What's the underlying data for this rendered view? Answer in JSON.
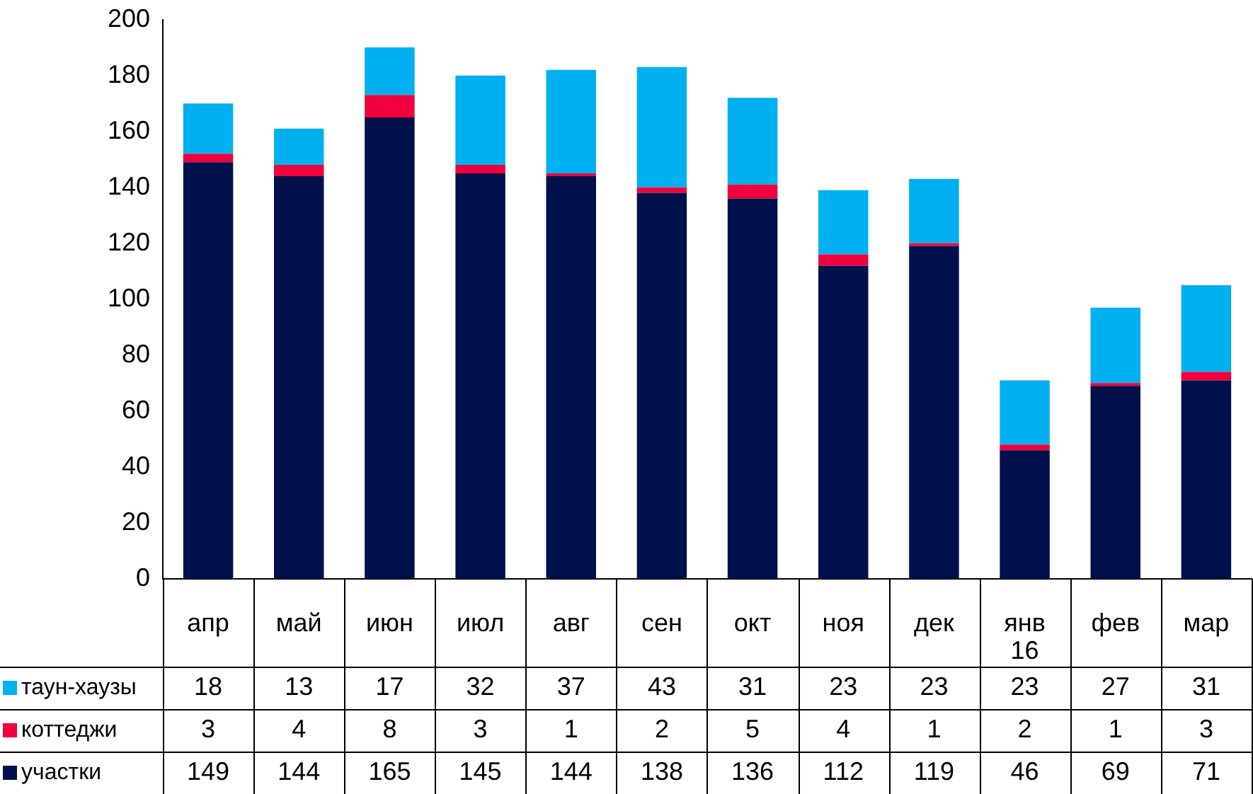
{
  "chart_data": {
    "type": "bar",
    "stacked": true,
    "data_labels": true,
    "legend": "bottom left",
    "grid": false,
    "categories": [
      "апр",
      "май",
      "июн",
      "июл",
      "авг",
      "сен",
      "окт",
      "ноя",
      "дек",
      "янв 16",
      "фев",
      "мар"
    ],
    "series": [
      {
        "name": "участки",
        "color": "#00104a",
        "values": [
          149,
          144,
          165,
          145,
          144,
          138,
          136,
          112,
          119,
          46,
          69,
          71
        ]
      },
      {
        "name": "коттеджи",
        "color": "#f0003c",
        "values": [
          3,
          4,
          8,
          3,
          1,
          2,
          5,
          4,
          1,
          2,
          1,
          3
        ]
      },
      {
        "name": "таун-хаузы",
        "color": "#00b0f0",
        "values": [
          18,
          13,
          17,
          32,
          37,
          43,
          31,
          23,
          23,
          23,
          27,
          31
        ]
      }
    ],
    "ylim": [
      0,
      200
    ],
    "yticks": [
      0,
      20,
      40,
      60,
      80,
      100,
      120,
      140,
      160,
      180,
      200
    ]
  }
}
